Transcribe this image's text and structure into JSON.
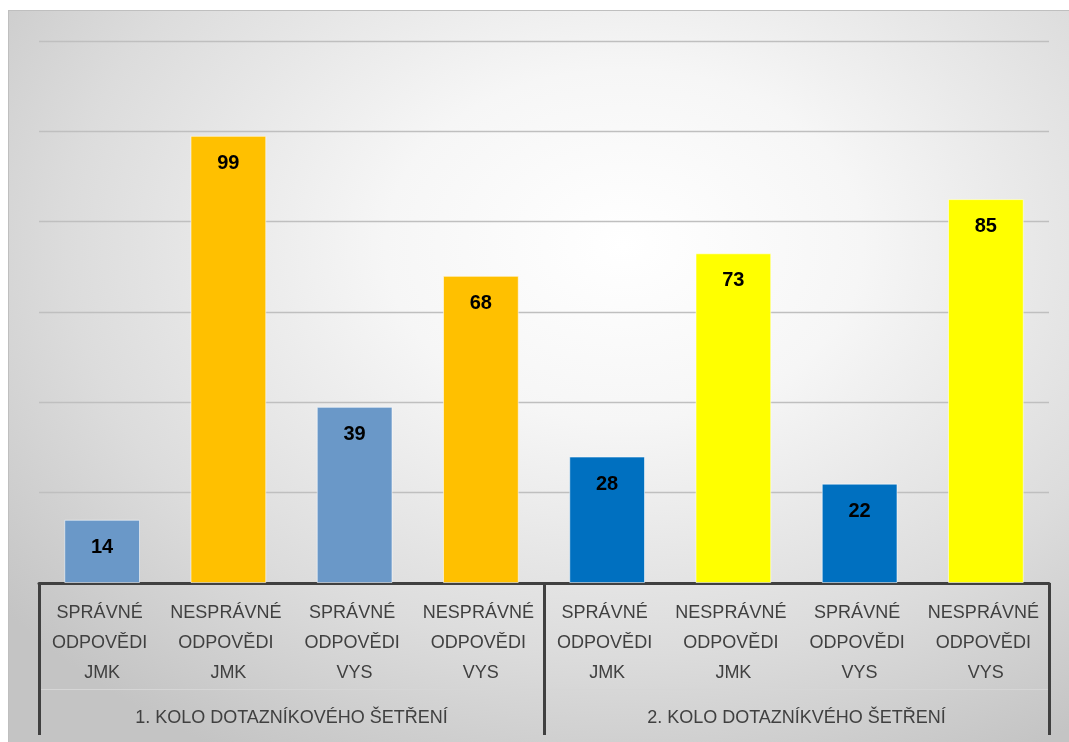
{
  "chart_data": {
    "type": "bar",
    "categories": [
      "SPRÁVNÉ ODPOVĚDI JMK",
      "NESPRÁVNÉ ODPOVĚDI JMK",
      "SPRÁVNÉ ODPOVĚDI VYS",
      "NESPRÁVNÉ ODPOVĚDI VYS",
      "SPRÁVNÉ ODPOVĚDI JMK",
      "NESPRÁVNÉ ODPOVĚDI JMK",
      "SPRÁVNÉ ODPOVĚDI VYS",
      "NESPRÁVNÉ ODPOVĚDI VYS"
    ],
    "values": [
      14,
      99,
      39,
      68,
      28,
      73,
      22,
      85
    ],
    "colors": [
      "#6a98c8",
      "#ffc000",
      "#6a98c8",
      "#ffc000",
      "#0070c0",
      "#ffff00",
      "#0070c0",
      "#ffff00"
    ],
    "ylim": [
      0,
      120
    ],
    "yticks": [
      {
        "value": 0,
        "label": null
      },
      {
        "value": 20,
        "label": null
      },
      {
        "value": 40,
        "label": null
      },
      {
        "value": 60,
        "label": null
      },
      {
        "value": 80,
        "label": null
      },
      {
        "value": 100,
        "label": null
      },
      {
        "value": 120,
        "label": null
      }
    ],
    "grid": "y",
    "tick_labels": "x",
    "data_labels": true,
    "annotations": [
      "1. KOLO DOTAZNÍKOVÉHO ŠETŘENÍ",
      "2. KOLO DOTAZNÍKVÉHO ŠETŘENÍ"
    ]
  }
}
